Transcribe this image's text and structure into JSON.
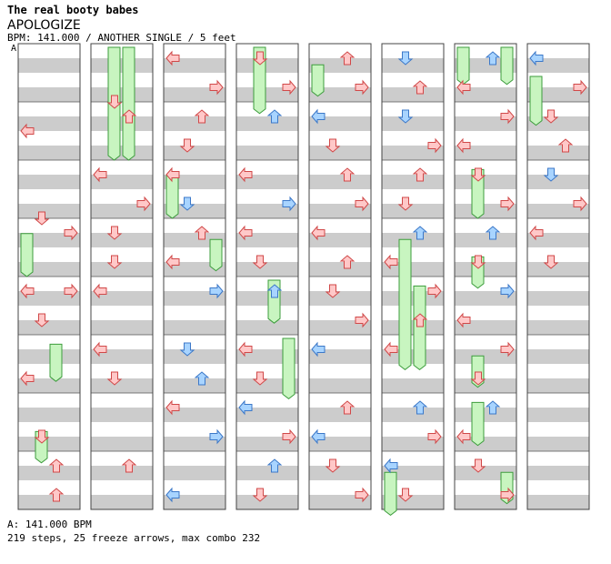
{
  "header": {
    "artist": "The real booty babes",
    "title": "APOLOGIZE",
    "info": "BPM: 141.000 / ANOTHER SINGLE / 5 feet",
    "marker": "A"
  },
  "footer": {
    "bpm_line": "A: 141.000 BPM",
    "stats_line": "219 steps, 25 freeze arrows, max combo 232"
  },
  "colors": {
    "red_arrow_fill": "#ffc8c8",
    "red_arrow_stroke": "#d04848",
    "blue_arrow_fill": "#a8d4ff",
    "blue_arrow_stroke": "#3c78c8",
    "freeze_fill": "#c8f5c0",
    "freeze_stroke": "#3c9c3c",
    "stripe": "#cccccc"
  },
  "chart_data": {
    "type": "step-chart",
    "lanes": [
      "left",
      "down",
      "up",
      "right"
    ],
    "columns": [
      {
        "notes": [
          [
            0,
            3,
            "left",
            "r"
          ],
          [
            3,
            3,
            "down",
            "r"
          ],
          [
            3,
            3.5,
            "right",
            "r"
          ],
          [
            3.5,
            5,
            "left",
            "r"
          ],
          [
            4,
            4.5,
            "right",
            "r"
          ],
          [
            4.5,
            5,
            "down",
            "r"
          ],
          [
            5.5,
            6,
            "left",
            "r"
          ],
          [
            6.5,
            7,
            "down",
            "r"
          ],
          [
            7,
            7.5,
            "up",
            "r"
          ],
          [
            7.5,
            8,
            "up",
            "r"
          ]
        ],
        "freezes": [
          [
            0,
            3.2,
            4.0
          ],
          [
            1,
            6.6,
            7.2
          ],
          [
            2,
            5.1,
            5.8
          ]
        ]
      },
      {
        "notes": [
          [
            0.5,
            1.5,
            "down",
            "r"
          ],
          [
            1,
            1.5,
            "up",
            "r"
          ],
          [
            2,
            2.5,
            "left",
            "r"
          ],
          [
            2.5,
            3,
            "right",
            "r"
          ],
          [
            3,
            3.5,
            "down",
            "r"
          ],
          [
            3.5,
            4,
            "down",
            "r"
          ],
          [
            4,
            4.5,
            "left",
            "r"
          ],
          [
            5,
            5.5,
            "left",
            "r"
          ],
          [
            5.5,
            6,
            "down",
            "r"
          ],
          [
            7,
            7.5,
            "up",
            "r"
          ]
        ],
        "freezes": [
          [
            1,
            0,
            2
          ],
          [
            2,
            0,
            2
          ]
        ]
      },
      {
        "notes": [
          [
            0,
            0.5,
            "left",
            "r"
          ],
          [
            0.5,
            1,
            "right",
            "r"
          ],
          [
            1,
            1.5,
            "up",
            "r"
          ],
          [
            1.5,
            2,
            "down",
            "r"
          ],
          [
            2,
            2.5,
            "left",
            "r"
          ],
          [
            2.5,
            3,
            "down",
            "b"
          ],
          [
            3,
            3.5,
            "up",
            "r"
          ],
          [
            3.5,
            4,
            "left",
            "r"
          ],
          [
            4,
            4.5,
            "right",
            "b"
          ],
          [
            5,
            5.5,
            "down",
            "b"
          ],
          [
            5.5,
            6,
            "up",
            "b"
          ],
          [
            6,
            6.5,
            "left",
            "r"
          ],
          [
            6.5,
            7,
            "right",
            "b"
          ],
          [
            7.5,
            8,
            "left",
            "b"
          ]
        ],
        "freezes": [
          [
            0,
            2.2,
            3.0
          ],
          [
            3,
            3.3,
            3.9
          ]
        ]
      },
      {
        "notes": [
          [
            0,
            0.5,
            "down",
            "r"
          ],
          [
            0.5,
            1,
            "right",
            "r"
          ],
          [
            1,
            1.5,
            "up",
            "b"
          ],
          [
            2,
            2.5,
            "left",
            "r"
          ],
          [
            2.5,
            3,
            "right",
            "b"
          ],
          [
            3,
            3.5,
            "left",
            "r"
          ],
          [
            3.5,
            4,
            "down",
            "r"
          ],
          [
            4,
            4.5,
            "up",
            "b"
          ],
          [
            5,
            5.5,
            "left",
            "r"
          ],
          [
            5.5,
            6,
            "down",
            "r"
          ],
          [
            6,
            6.5,
            "left",
            "b"
          ],
          [
            6.5,
            7,
            "right",
            "r"
          ],
          [
            7,
            7.5,
            "up",
            "b"
          ],
          [
            7.5,
            8,
            "down",
            "r"
          ]
        ],
        "freezes": [
          [
            1,
            0,
            1.2
          ],
          [
            2,
            4,
            4.8
          ],
          [
            3,
            5,
            6.1
          ]
        ]
      },
      {
        "notes": [
          [
            0,
            0.5,
            "up",
            "r"
          ],
          [
            0.5,
            1,
            "right",
            "r"
          ],
          [
            1,
            1.5,
            "left",
            "b"
          ],
          [
            1.5,
            2,
            "down",
            "r"
          ],
          [
            2,
            2.5,
            "up",
            "r"
          ],
          [
            2.5,
            3,
            "right",
            "r"
          ],
          [
            3,
            3.5,
            "left",
            "r"
          ],
          [
            3.5,
            4,
            "up",
            "r"
          ],
          [
            4,
            4.5,
            "down",
            "r"
          ],
          [
            4.5,
            5,
            "right",
            "r"
          ],
          [
            5,
            5.5,
            "left",
            "b"
          ],
          [
            6,
            6.5,
            "up",
            "r"
          ],
          [
            6.5,
            7,
            "left",
            "b"
          ],
          [
            7,
            7.5,
            "down",
            "r"
          ],
          [
            7.5,
            8,
            "right",
            "r"
          ]
        ],
        "freezes": [
          [
            0,
            0.3,
            0.9
          ]
        ]
      },
      {
        "notes": [
          [
            0,
            0.5,
            "down",
            "b"
          ],
          [
            0.5,
            1,
            "up",
            "r"
          ],
          [
            1,
            1.5,
            "down",
            "b"
          ],
          [
            1.5,
            2,
            "right",
            "r"
          ],
          [
            2,
            2.5,
            "up",
            "r"
          ],
          [
            2.5,
            3,
            "down",
            "r"
          ],
          [
            3,
            3.5,
            "up",
            "b"
          ],
          [
            3.5,
            4,
            "left",
            "r"
          ],
          [
            4,
            4.5,
            "right",
            "r"
          ],
          [
            4.5,
            5,
            "up",
            "r"
          ],
          [
            5,
            5.5,
            "left",
            "r"
          ],
          [
            6,
            6.5,
            "up",
            "b"
          ],
          [
            6.5,
            7,
            "right",
            "r"
          ],
          [
            7,
            7.5,
            "left",
            "b"
          ],
          [
            7.5,
            8,
            "down",
            "r"
          ]
        ],
        "freezes": [
          [
            1,
            3.3,
            5.6
          ],
          [
            2,
            4.1,
            5.6
          ],
          [
            0,
            7.3,
            8.1
          ]
        ]
      },
      {
        "notes": [
          [
            0,
            0.5,
            "up",
            "b"
          ],
          [
            0.5,
            1,
            "left",
            "r"
          ],
          [
            1,
            1.5,
            "right",
            "r"
          ],
          [
            1.5,
            2,
            "left",
            "r"
          ],
          [
            2,
            2.5,
            "down",
            "r"
          ],
          [
            2.5,
            3,
            "right",
            "r"
          ],
          [
            3,
            3.5,
            "up",
            "b"
          ],
          [
            3.5,
            4,
            "down",
            "r"
          ],
          [
            4,
            4.5,
            "right",
            "b"
          ],
          [
            4.5,
            5,
            "left",
            "r"
          ],
          [
            5,
            5.5,
            "right",
            "r"
          ],
          [
            5.5,
            6,
            "down",
            "r"
          ],
          [
            6,
            6.5,
            "up",
            "b"
          ],
          [
            6.5,
            7,
            "left",
            "r"
          ],
          [
            7,
            7.5,
            "down",
            "r"
          ],
          [
            7.5,
            8,
            "right",
            "r"
          ]
        ],
        "freezes": [
          [
            0,
            0,
            0.7
          ],
          [
            3,
            0,
            0.7
          ],
          [
            1,
            2.1,
            3.0
          ],
          [
            1,
            3.6,
            4.2
          ],
          [
            1,
            5.3,
            5.9
          ],
          [
            1,
            6.1,
            6.9
          ],
          [
            3,
            7.3,
            7.9
          ]
        ]
      },
      {
        "notes": [
          [
            0,
            0.5,
            "left",
            "b"
          ],
          [
            0.5,
            1,
            "right",
            "r"
          ],
          [
            1,
            1.5,
            "down",
            "r"
          ],
          [
            1.5,
            2,
            "up",
            "r"
          ],
          [
            2,
            2.5,
            "down",
            "b"
          ],
          [
            2.5,
            3,
            "right",
            "r"
          ],
          [
            3,
            3.5,
            "left",
            "r"
          ],
          [
            3.5,
            4,
            "down",
            "r"
          ]
        ],
        "freezes": [
          [
            0,
            0.5,
            1.4
          ]
        ]
      }
    ]
  }
}
